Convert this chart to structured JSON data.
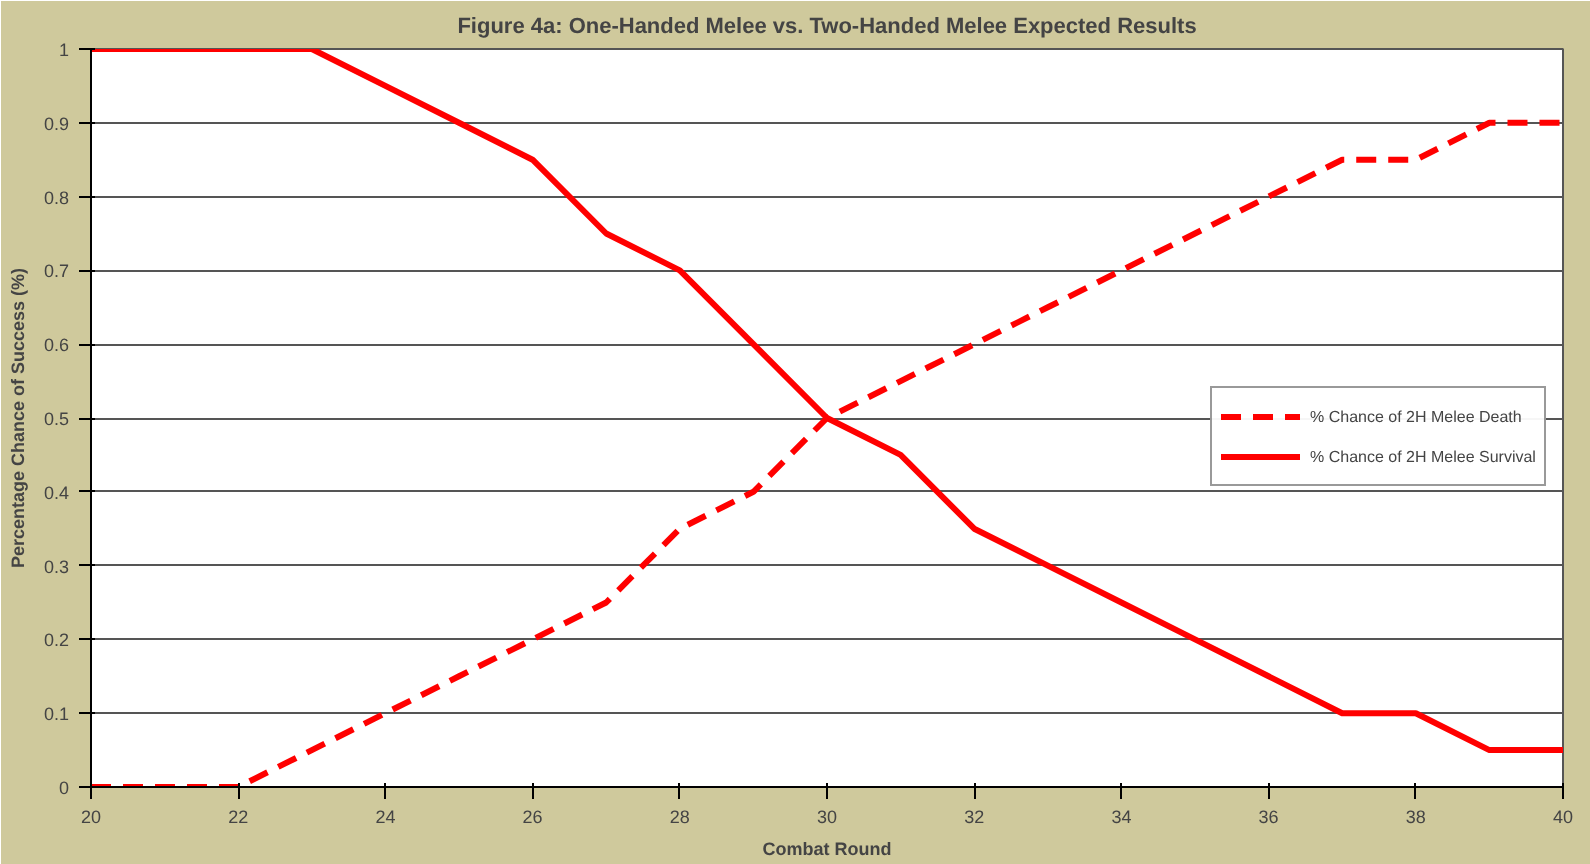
{
  "chart_data": {
    "type": "line",
    "title": "Figure 4a: One-Handed Melee vs. Two-Handed Melee Expected Results",
    "xlabel": "Combat Round",
    "ylabel": "Percentage Chance of Success (%)",
    "x": [
      20,
      21,
      22,
      23,
      24,
      25,
      26,
      27,
      28,
      29,
      30,
      31,
      32,
      33,
      34,
      35,
      36,
      37,
      38,
      39,
      40
    ],
    "series": [
      {
        "name": "% Chance of 2H Melee Death",
        "color": "#ff0000",
        "line_style": "dashed",
        "values": [
          0,
          0,
          0,
          0.05,
          0.1,
          0.15,
          0.2,
          0.25,
          0.35,
          0.4,
          0.5,
          0.55,
          0.6,
          0.65,
          0.7,
          0.75,
          0.8,
          0.85,
          0.85,
          0.9,
          0.9
        ]
      },
      {
        "name": "% Chance of 2H Melee Survival",
        "color": "#ff0000",
        "line_style": "solid",
        "values": [
          1,
          1,
          1,
          1,
          0.95,
          0.9,
          0.85,
          0.75,
          0.7,
          0.6,
          0.5,
          0.45,
          0.35,
          0.3,
          0.25,
          0.2,
          0.15,
          0.1,
          0.1,
          0.05,
          0.05
        ]
      }
    ],
    "xlim": [
      20,
      40
    ],
    "xticks": [
      20,
      22,
      24,
      26,
      28,
      30,
      32,
      34,
      36,
      38,
      40
    ],
    "ylim": [
      0,
      1
    ],
    "yticks": [
      0,
      0.1,
      0.2,
      0.3,
      0.4,
      0.5,
      0.6,
      0.7,
      0.8,
      0.9,
      1
    ],
    "grid": "y",
    "legend": "center right",
    "marker": "none"
  }
}
